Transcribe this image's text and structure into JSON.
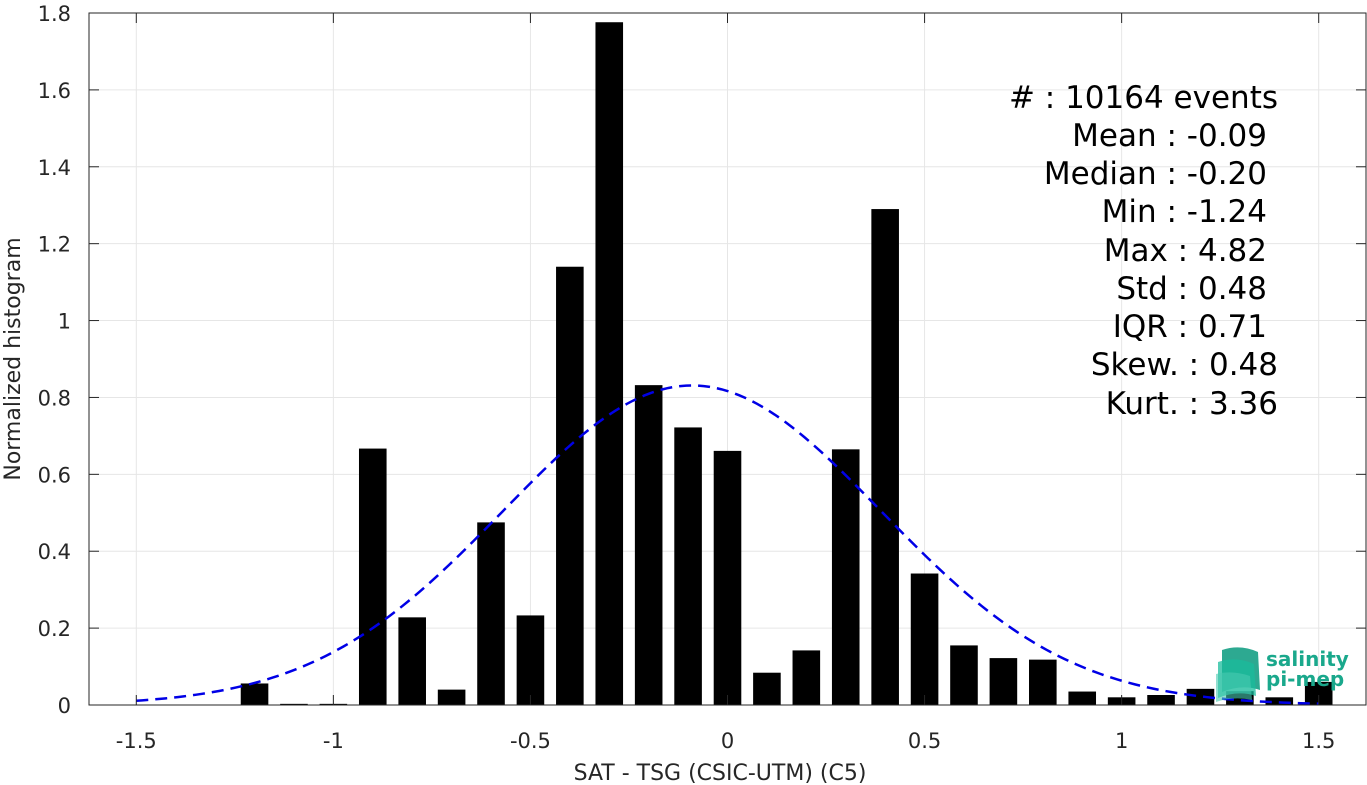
{
  "chart_data": {
    "type": "bar",
    "xlabel": "SAT - TSG (CSIC-UTM) (C5)",
    "ylabel": "Normalized histogram",
    "xlim": [
      -1.62,
      1.62
    ],
    "ylim": [
      0,
      1.8
    ],
    "grid": true,
    "xticks": [
      -1.5,
      -1,
      -0.5,
      0,
      0.5,
      1,
      1.5
    ],
    "xtick_labels": [
      "-1.5",
      "-1",
      "-0.5",
      "0",
      "0.5",
      "1",
      "1.5"
    ],
    "yticks": [
      0,
      0.2,
      0.4,
      0.6,
      0.8,
      1,
      1.2,
      1.4,
      1.6,
      1.8
    ],
    "ytick_labels": [
      "0",
      "0.2",
      "0.4",
      "0.6",
      "0.8",
      "1",
      "1.2",
      "1.4",
      "1.6",
      "1.8"
    ],
    "bar_width": 0.07,
    "bar_color": "#000000",
    "bins": [
      -1.2,
      -1.1,
      -1.0,
      -0.9,
      -0.8,
      -0.7,
      -0.6,
      -0.5,
      -0.4,
      -0.3,
      -0.2,
      -0.1,
      0.0,
      0.1,
      0.2,
      0.3,
      0.4,
      0.5,
      0.6,
      0.7,
      0.8,
      0.9,
      1.0,
      1.1,
      1.2,
      1.3,
      1.4,
      1.5
    ],
    "values": [
      0.056,
      0.003,
      0.003,
      0.667,
      0.228,
      0.04,
      0.475,
      0.233,
      1.14,
      1.776,
      0.832,
      0.722,
      0.661,
      0.084,
      0.142,
      0.665,
      1.29,
      0.342,
      0.155,
      0.122,
      0.118,
      0.035,
      0.02,
      0.026,
      0.042,
      0.036,
      0.02,
      0.06
    ],
    "fit_curve": {
      "type": "normal",
      "mean": -0.09,
      "std": 0.48,
      "x_range": [
        -1.5,
        1.5
      ],
      "color": "#0000e6",
      "style": "dashed"
    }
  },
  "stats": {
    "lines": [
      "#  : 10164 events",
      "Mean : -0.09",
      "Median : -0.20",
      "Min : -1.24",
      "Max : 4.82",
      "Std : 0.48",
      "IQR : 0.71",
      "Skew. : 0.48",
      "Kurt. : 3.36"
    ]
  },
  "logo": {
    "line1": "salinity",
    "line2": "pi-mep",
    "color": "#1aa88c"
  }
}
